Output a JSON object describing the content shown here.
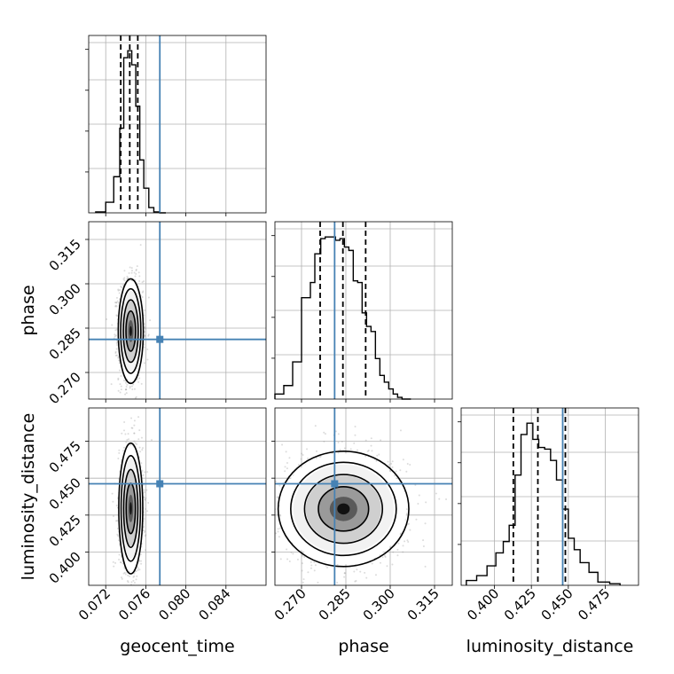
{
  "chart_data": {
    "type": "corner",
    "params": [
      "geocent_time",
      "phase",
      "luminosity_distance"
    ],
    "truths": {
      "geocent_time": 0.0774,
      "phase": 0.2812,
      "luminosity_distance": 0.4462
    },
    "truth_color": "#4682b4",
    "quantiles": {
      "geocent_time": [
        0.0735,
        0.0744,
        0.0752
      ],
      "phase": [
        0.2763,
        0.284,
        0.2917
      ],
      "luminosity_distance": [
        0.4128,
        0.4294,
        0.448
      ]
    },
    "axes": {
      "geocent_time": {
        "range": [
          0.0703,
          0.088
        ],
        "ticks": [
          0.072,
          0.076,
          0.08,
          0.084
        ],
        "tick_labels": [
          "0.072",
          "0.076",
          "0.080",
          "0.084"
        ]
      },
      "phase": {
        "range": [
          0.261,
          0.321
        ],
        "ticks": [
          0.27,
          0.285,
          0.3,
          0.315
        ],
        "tick_labels": [
          "0.270",
          "0.285",
          "0.300",
          "0.315"
        ]
      },
      "luminosity_distance": {
        "range": [
          0.3775,
          0.4975
        ],
        "ticks": [
          0.4,
          0.425,
          0.45,
          0.475
        ],
        "tick_labels": [
          "0.400",
          "0.425",
          "0.450",
          "0.475"
        ]
      }
    },
    "hist1d": {
      "geocent_time": {
        "edges": [
          0.071,
          0.072,
          0.0728,
          0.0734,
          0.0738,
          0.0742,
          0.0746,
          0.075,
          0.0754,
          0.0758,
          0.0763,
          0.0768,
          0.0774,
          0.078
        ],
        "counts": [
          1,
          12,
          41,
          96,
          176,
          184,
          168,
          121,
          60,
          28,
          6,
          1,
          0
        ]
      },
      "phase": {
        "edges": [
          0.261,
          0.264,
          0.267,
          0.27,
          0.273,
          0.2745,
          0.2765,
          0.278,
          0.28,
          0.2815,
          0.283,
          0.2845,
          0.286,
          0.2875,
          0.289,
          0.2905,
          0.292,
          0.2935,
          0.295,
          0.2965,
          0.298,
          0.2995,
          0.301,
          0.3025,
          0.304,
          0.307
        ],
        "counts": [
          3,
          8,
          22,
          60,
          69,
          86,
          95,
          96,
          96,
          94,
          95,
          90,
          88,
          70,
          69,
          51,
          43,
          40,
          24,
          14,
          10,
          6,
          3,
          1,
          0
        ]
      },
      "luminosity_distance": {
        "edges": [
          0.381,
          0.388,
          0.395,
          0.401,
          0.406,
          0.41,
          0.414,
          0.418,
          0.422,
          0.426,
          0.43,
          0.434,
          0.438,
          0.442,
          0.446,
          0.45,
          0.454,
          0.458,
          0.464,
          0.47,
          0.478,
          0.485
        ],
        "counts": [
          3,
          6,
          12,
          20,
          27,
          37,
          68,
          93,
          100,
          90,
          85,
          84,
          77,
          65,
          47,
          29,
          22,
          14,
          8,
          2,
          1
        ]
      }
    },
    "contours2d": [
      {
        "x": "geocent_time",
        "y": "phase",
        "cx": 0.0745,
        "cy": 0.284,
        "sx": 0.00048,
        "sy": 0.0068
      },
      {
        "x": "geocent_time",
        "y": "luminosity_distance",
        "cx": 0.0745,
        "cy": 0.4295,
        "sx": 0.00046,
        "sy": 0.017
      },
      {
        "x": "phase",
        "y": "luminosity_distance",
        "cx": 0.2842,
        "cy": 0.4292,
        "sx": 0.0085,
        "sy": 0.015
      }
    ],
    "grid": true
  }
}
